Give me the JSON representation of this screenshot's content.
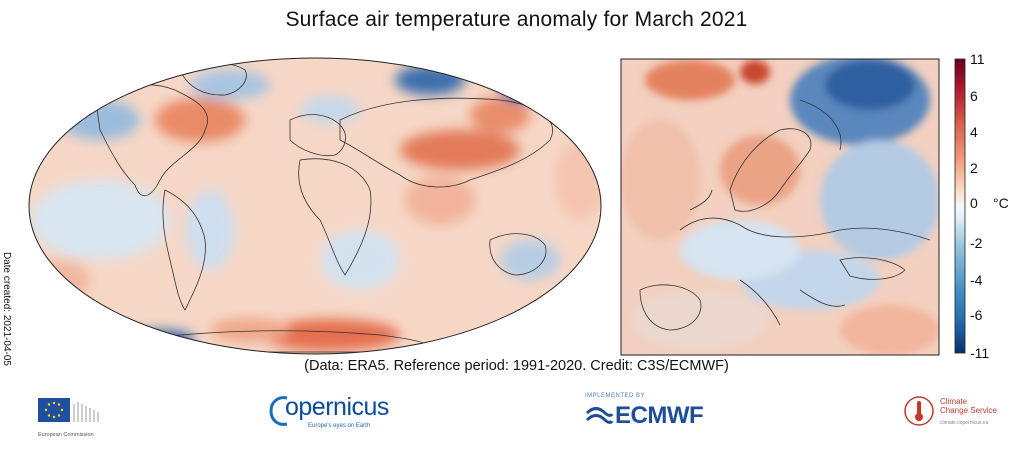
{
  "title": "Surface air temperature anomaly for March 2021",
  "date_created": "Date created: 2021-04-05",
  "credit": "(Data: ERA5.  Reference period: 1991-2020.  Credit: C3S/ECMWF)",
  "colorbar": {
    "unit": "°C",
    "tick_labels": [
      "11",
      "6",
      "4",
      "2",
      "0",
      "-2",
      "-4",
      "-6",
      "-11"
    ],
    "colors": [
      "#08306b",
      "#2166ac",
      "#4393c3",
      "#92c5de",
      "#d1e5f0",
      "#f7f7f7",
      "#fddbc7",
      "#f4a582",
      "#d6604d",
      "#b2182b",
      "#67001f"
    ]
  },
  "logos": {
    "eu": "European Commission",
    "copernicus": "opernicus",
    "copernicus_tagline": "Europe's eyes on Earth",
    "ecmwf_top": "IMPLEMENTED BY",
    "ecmwf": "ECMWF",
    "c3s_line1": "Climate",
    "c3s_line2": "Change Service",
    "c3s_sub": "climate.copernicus.eu"
  }
}
